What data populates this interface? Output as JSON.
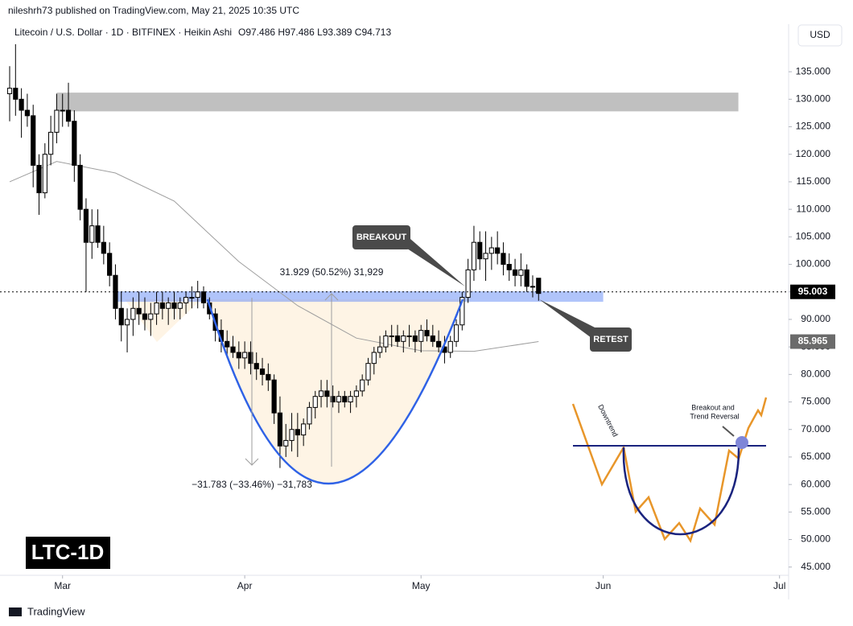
{
  "chart_data": {
    "type": "candlestick",
    "header": {
      "publisher": "nileshrh73 published on TradingView.com, May 21, 2025 10:35 UTC",
      "symbol": "Litecoin / U.S. Dollar · 1D · BITFINEX · Heikin Ashi",
      "ohlc_label": "O97.486 H97.486 L93.389 C94.713",
      "currency": "USD"
    },
    "title": "LTC-1D",
    "ohlc": {
      "open": [
        131,
        132,
        130,
        128,
        127,
        118,
        113,
        120,
        124,
        128,
        128,
        126,
        118,
        110,
        104,
        107,
        104,
        102,
        98,
        92,
        89,
        90,
        92,
        91,
        90,
        91,
        93,
        92,
        93,
        92,
        93,
        94,
        94,
        95,
        93,
        91,
        88,
        86,
        85,
        84,
        83,
        84,
        82,
        81,
        80,
        79,
        73,
        67,
        68,
        70,
        69,
        71,
        74,
        76,
        77,
        76,
        75,
        76,
        75,
        76,
        77,
        79,
        82,
        84,
        85,
        87,
        87,
        86,
        87,
        87,
        86,
        88,
        87,
        86,
        85,
        84,
        86,
        89,
        94,
        99,
        104,
        101,
        102,
        103,
        102,
        100,
        99,
        98,
        99,
        96,
        97.486
      ],
      "high": [
        136,
        140,
        132,
        131,
        129,
        120,
        122,
        127,
        131,
        131,
        133,
        128,
        120,
        112,
        110,
        110,
        107,
        104,
        100,
        95,
        92,
        94,
        95,
        94,
        93,
        95,
        95,
        94,
        95,
        94,
        95,
        96,
        97,
        96,
        94,
        92,
        90,
        88,
        87,
        86,
        86,
        86,
        84,
        83,
        82,
        80,
        76,
        71,
        73,
        73,
        72,
        75,
        77,
        79,
        79,
        78,
        77,
        77,
        77,
        78,
        80,
        83,
        85,
        87,
        88,
        89,
        89,
        88,
        89,
        88,
        89,
        90,
        89,
        88,
        87,
        87,
        90,
        95,
        101,
        107,
        106,
        106,
        105,
        106,
        104,
        102,
        101,
        102,
        100,
        98,
        97.486
      ],
      "low": [
        126,
        127,
        123,
        125,
        114,
        109,
        112,
        118,
        122,
        125,
        125,
        115,
        108,
        95,
        101,
        103,
        100,
        96,
        90,
        86,
        84,
        87,
        89,
        88,
        87,
        89,
        90,
        89,
        90,
        90,
        91,
        92,
        92,
        92,
        90,
        86,
        84,
        83,
        83,
        81,
        81,
        80,
        79,
        78,
        77,
        71,
        63,
        65,
        66,
        65,
        67,
        70,
        72,
        74,
        74,
        74,
        73,
        74,
        73,
        74,
        76,
        78,
        80,
        83,
        84,
        85,
        85,
        84,
        85,
        84,
        84,
        86,
        85,
        84,
        82,
        83,
        85,
        88,
        93,
        97,
        99,
        97,
        99,
        100,
        98,
        97,
        96,
        96,
        95,
        94,
        93.389
      ],
      "close": [
        132,
        130,
        128,
        127,
        118,
        113,
        120,
        124,
        128,
        128,
        126,
        118,
        110,
        104,
        107,
        104,
        102,
        98,
        92,
        89,
        90,
        92,
        91,
        90,
        91,
        93,
        92,
        93,
        92,
        93,
        94,
        94,
        95,
        93,
        91,
        88,
        86,
        85,
        84,
        83,
        84,
        82,
        81,
        80,
        79,
        73,
        67,
        68,
        70,
        69,
        71,
        74,
        76,
        77,
        76,
        75,
        76,
        75,
        76,
        77,
        79,
        82,
        84,
        85,
        87,
        87,
        86,
        87,
        87,
        86,
        88,
        87,
        86,
        85,
        84,
        86,
        89,
        94,
        99,
        104,
        101,
        102,
        103,
        102,
        100,
        99,
        98,
        99,
        96,
        96,
        94.713
      ]
    },
    "ma": {
      "x": [
        0,
        8,
        18,
        28,
        39,
        49,
        59,
        70,
        79,
        90
      ],
      "values": [
        115,
        118.7,
        116.6,
        111.5,
        100.5,
        92.5,
        86.6,
        84.3,
        84.2,
        85.965
      ]
    },
    "last_price": 95.003,
    "zones": [
      {
        "x": [
          8,
          124
        ],
        "ylim": [
          127.8,
          131.2
        ]
      },
      {
        "x": [
          18,
          101
        ],
        "ylim": [
          93.2,
          95.1
        ]
      }
    ],
    "annotations": {
      "breakout": "BREAKOUT",
      "retest": "RETEST",
      "gain": "31.929 (50.52%) 31,929",
      "loss": "−31.783 (−33.46%) −31,783",
      "inset_downtrend": "Downtrend",
      "inset_breakout": "Breakout and",
      "inset_reversal": "Trend Reversal"
    },
    "xlim": [
      0,
      132
    ],
    "xticks": [
      {
        "value": 9,
        "label": "Mar"
      },
      {
        "value": 40,
        "label": "Apr"
      },
      {
        "value": 70,
        "label": "May"
      },
      {
        "value": 101,
        "label": "Jun"
      },
      {
        "value": 131,
        "label": "Jul"
      }
    ],
    "ylim": [
      43.5,
      143.5
    ],
    "yticks": [
      {
        "value": 45,
        "label": "45.000"
      },
      {
        "value": 50,
        "label": "50.000"
      },
      {
        "value": 55,
        "label": "55.000"
      },
      {
        "value": 60,
        "label": "60.000"
      },
      {
        "value": 65,
        "label": "65.000"
      },
      {
        "value": 70,
        "label": "70.000"
      },
      {
        "value": 75,
        "label": "75.000"
      },
      {
        "value": 80,
        "label": "80.000"
      },
      {
        "value": 85,
        "label": "85.000"
      },
      {
        "value": 90,
        "label": "90.000"
      },
      {
        "value": 95,
        "label": "95.000"
      },
      {
        "value": 100,
        "label": "100.000"
      },
      {
        "value": 105,
        "label": "105.000"
      },
      {
        "value": 110,
        "label": "110.000"
      },
      {
        "value": 115,
        "label": "115.000"
      },
      {
        "value": 120,
        "label": "120.000"
      },
      {
        "value": 125,
        "label": "125.000"
      },
      {
        "value": 130,
        "label": "130.000"
      },
      {
        "value": 135,
        "label": "135.000"
      }
    ],
    "footer": "TradingView"
  }
}
